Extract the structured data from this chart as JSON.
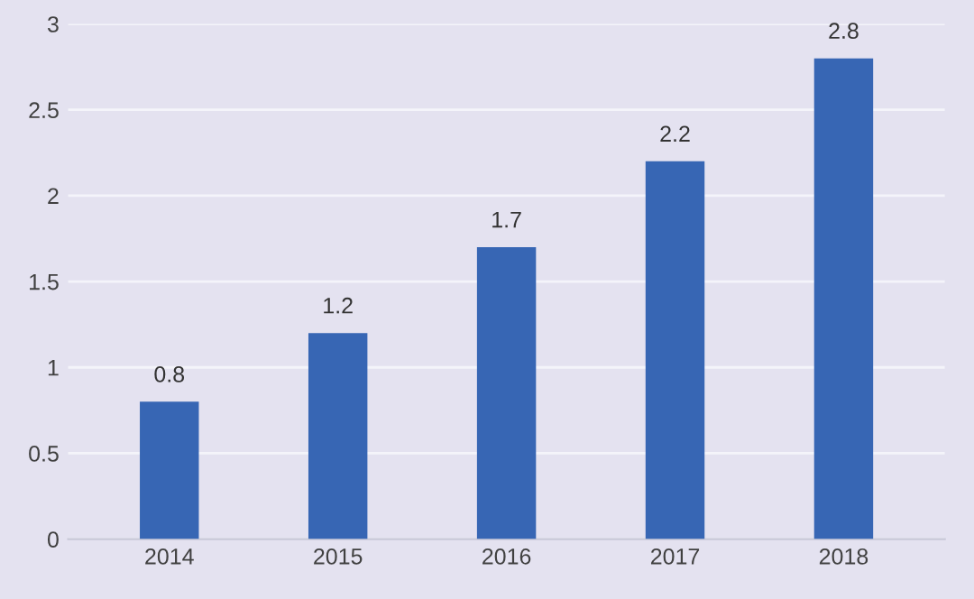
{
  "chart_data": {
    "type": "bar",
    "categories": [
      "2014",
      "2015",
      "2016",
      "2017",
      "2018"
    ],
    "values": [
      0.8,
      1.2,
      1.7,
      2.2,
      2.8
    ],
    "color": "#3766b4",
    "ylim": [
      0,
      3
    ],
    "yticks": [
      0,
      0.5,
      1,
      1.5,
      2,
      2.5,
      3
    ],
    "grid": "y",
    "data_labels": true,
    "legend": false
  }
}
